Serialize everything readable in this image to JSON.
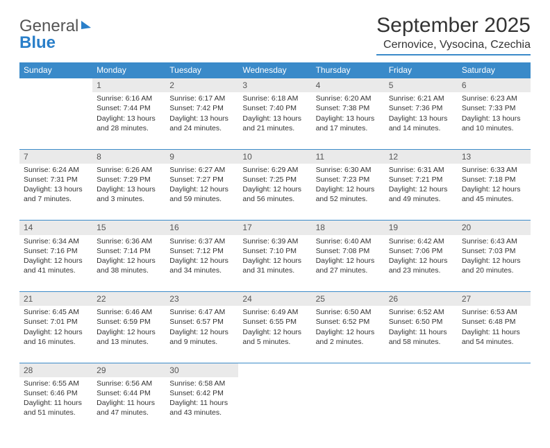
{
  "logo": {
    "part1": "General",
    "part2": "Blue"
  },
  "title": "September 2025",
  "location": "Cernovice, Vysocina, Czechia",
  "colors": {
    "header_bg": "#3a8ac9",
    "header_text": "#ffffff",
    "daynum_bg": "#eaeaea",
    "border": "#3a8ac9",
    "text": "#333333",
    "logo_blue": "#2a7fc9"
  },
  "weekdays": [
    "Sunday",
    "Monday",
    "Tuesday",
    "Wednesday",
    "Thursday",
    "Friday",
    "Saturday"
  ],
  "weeks": [
    {
      "nums": [
        "",
        "1",
        "2",
        "3",
        "4",
        "5",
        "6"
      ],
      "cells": [
        {
          "lines": []
        },
        {
          "lines": [
            "Sunrise: 6:16 AM",
            "Sunset: 7:44 PM",
            "Daylight: 13 hours",
            "and 28 minutes."
          ]
        },
        {
          "lines": [
            "Sunrise: 6:17 AM",
            "Sunset: 7:42 PM",
            "Daylight: 13 hours",
            "and 24 minutes."
          ]
        },
        {
          "lines": [
            "Sunrise: 6:18 AM",
            "Sunset: 7:40 PM",
            "Daylight: 13 hours",
            "and 21 minutes."
          ]
        },
        {
          "lines": [
            "Sunrise: 6:20 AM",
            "Sunset: 7:38 PM",
            "Daylight: 13 hours",
            "and 17 minutes."
          ]
        },
        {
          "lines": [
            "Sunrise: 6:21 AM",
            "Sunset: 7:36 PM",
            "Daylight: 13 hours",
            "and 14 minutes."
          ]
        },
        {
          "lines": [
            "Sunrise: 6:23 AM",
            "Sunset: 7:33 PM",
            "Daylight: 13 hours",
            "and 10 minutes."
          ]
        }
      ]
    },
    {
      "nums": [
        "7",
        "8",
        "9",
        "10",
        "11",
        "12",
        "13"
      ],
      "cells": [
        {
          "lines": [
            "Sunrise: 6:24 AM",
            "Sunset: 7:31 PM",
            "Daylight: 13 hours",
            "and 7 minutes."
          ]
        },
        {
          "lines": [
            "Sunrise: 6:26 AM",
            "Sunset: 7:29 PM",
            "Daylight: 13 hours",
            "and 3 minutes."
          ]
        },
        {
          "lines": [
            "Sunrise: 6:27 AM",
            "Sunset: 7:27 PM",
            "Daylight: 12 hours",
            "and 59 minutes."
          ]
        },
        {
          "lines": [
            "Sunrise: 6:29 AM",
            "Sunset: 7:25 PM",
            "Daylight: 12 hours",
            "and 56 minutes."
          ]
        },
        {
          "lines": [
            "Sunrise: 6:30 AM",
            "Sunset: 7:23 PM",
            "Daylight: 12 hours",
            "and 52 minutes."
          ]
        },
        {
          "lines": [
            "Sunrise: 6:31 AM",
            "Sunset: 7:21 PM",
            "Daylight: 12 hours",
            "and 49 minutes."
          ]
        },
        {
          "lines": [
            "Sunrise: 6:33 AM",
            "Sunset: 7:18 PM",
            "Daylight: 12 hours",
            "and 45 minutes."
          ]
        }
      ]
    },
    {
      "nums": [
        "14",
        "15",
        "16",
        "17",
        "18",
        "19",
        "20"
      ],
      "cells": [
        {
          "lines": [
            "Sunrise: 6:34 AM",
            "Sunset: 7:16 PM",
            "Daylight: 12 hours",
            "and 41 minutes."
          ]
        },
        {
          "lines": [
            "Sunrise: 6:36 AM",
            "Sunset: 7:14 PM",
            "Daylight: 12 hours",
            "and 38 minutes."
          ]
        },
        {
          "lines": [
            "Sunrise: 6:37 AM",
            "Sunset: 7:12 PM",
            "Daylight: 12 hours",
            "and 34 minutes."
          ]
        },
        {
          "lines": [
            "Sunrise: 6:39 AM",
            "Sunset: 7:10 PM",
            "Daylight: 12 hours",
            "and 31 minutes."
          ]
        },
        {
          "lines": [
            "Sunrise: 6:40 AM",
            "Sunset: 7:08 PM",
            "Daylight: 12 hours",
            "and 27 minutes."
          ]
        },
        {
          "lines": [
            "Sunrise: 6:42 AM",
            "Sunset: 7:06 PM",
            "Daylight: 12 hours",
            "and 23 minutes."
          ]
        },
        {
          "lines": [
            "Sunrise: 6:43 AM",
            "Sunset: 7:03 PM",
            "Daylight: 12 hours",
            "and 20 minutes."
          ]
        }
      ]
    },
    {
      "nums": [
        "21",
        "22",
        "23",
        "24",
        "25",
        "26",
        "27"
      ],
      "cells": [
        {
          "lines": [
            "Sunrise: 6:45 AM",
            "Sunset: 7:01 PM",
            "Daylight: 12 hours",
            "and 16 minutes."
          ]
        },
        {
          "lines": [
            "Sunrise: 6:46 AM",
            "Sunset: 6:59 PM",
            "Daylight: 12 hours",
            "and 13 minutes."
          ]
        },
        {
          "lines": [
            "Sunrise: 6:47 AM",
            "Sunset: 6:57 PM",
            "Daylight: 12 hours",
            "and 9 minutes."
          ]
        },
        {
          "lines": [
            "Sunrise: 6:49 AM",
            "Sunset: 6:55 PM",
            "Daylight: 12 hours",
            "and 5 minutes."
          ]
        },
        {
          "lines": [
            "Sunrise: 6:50 AM",
            "Sunset: 6:52 PM",
            "Daylight: 12 hours",
            "and 2 minutes."
          ]
        },
        {
          "lines": [
            "Sunrise: 6:52 AM",
            "Sunset: 6:50 PM",
            "Daylight: 11 hours",
            "and 58 minutes."
          ]
        },
        {
          "lines": [
            "Sunrise: 6:53 AM",
            "Sunset: 6:48 PM",
            "Daylight: 11 hours",
            "and 54 minutes."
          ]
        }
      ]
    },
    {
      "nums": [
        "28",
        "29",
        "30",
        "",
        "",
        "",
        ""
      ],
      "cells": [
        {
          "lines": [
            "Sunrise: 6:55 AM",
            "Sunset: 6:46 PM",
            "Daylight: 11 hours",
            "and 51 minutes."
          ]
        },
        {
          "lines": [
            "Sunrise: 6:56 AM",
            "Sunset: 6:44 PM",
            "Daylight: 11 hours",
            "and 47 minutes."
          ]
        },
        {
          "lines": [
            "Sunrise: 6:58 AM",
            "Sunset: 6:42 PM",
            "Daylight: 11 hours",
            "and 43 minutes."
          ]
        },
        {
          "lines": []
        },
        {
          "lines": []
        },
        {
          "lines": []
        },
        {
          "lines": []
        }
      ]
    }
  ]
}
